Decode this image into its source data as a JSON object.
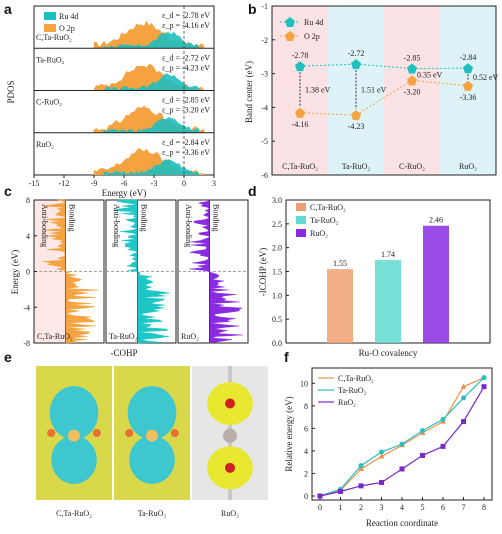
{
  "colors": {
    "ru": "#1fbfbf",
    "o": "#f5a240",
    "purple": "#8a2be2",
    "orange_bar": "#f0a070",
    "teal_bar": "#5fdcd0",
    "pink_band": "#fbe2e4",
    "blue_band": "#def3f8"
  },
  "panels": {
    "a": "a",
    "b": "b",
    "c": "c",
    "d": "d",
    "e": "e",
    "f": "f"
  },
  "chart_data": [
    {
      "id": "a",
      "type": "area",
      "ylabel": "PDOS",
      "xlabel": "Energy (eV)",
      "xlim": [
        -15,
        3
      ],
      "xticks": [
        "-15",
        "-12",
        "-9",
        "-6",
        "-3",
        "0",
        "3"
      ],
      "legend": [
        "Ru 4d",
        "O 2p"
      ],
      "rows": [
        {
          "name": "C,Ta-RuO₂",
          "ed": "ε_d = -2.78 eV",
          "ep": "ε_p = -4.16 eV"
        },
        {
          "name": "Ta-RuO₂",
          "ed": "ε_d = -2.72 eV",
          "ep": "ε_p = -4.23 eV"
        },
        {
          "name": "C-RuO₂",
          "ed": "ε_d = -2.85 eV",
          "ep": "ε_p = -3.20 eV"
        },
        {
          "name": "RuO₂",
          "ed": "ε_d = -2.84 eV",
          "ep": "ε_p = -3.36 eV"
        }
      ]
    },
    {
      "id": "b",
      "type": "scatter",
      "ylabel": "Band center (eV)",
      "ylim": [
        -6,
        -1
      ],
      "yticks": [
        "-1",
        "-2",
        "-3",
        "-4",
        "-5",
        "-6"
      ],
      "categories": [
        "C,Ta-RuO₂",
        "Ta-RuO₂",
        "C-RuO₂",
        "RuO₂"
      ],
      "series": [
        {
          "name": "Ru 4d",
          "values": [
            -2.78,
            -2.72,
            -2.85,
            -2.84
          ],
          "labels": [
            "-2.78",
            "-2.72",
            "-2.85",
            "-2.84"
          ]
        },
        {
          "name": "O 2p",
          "values": [
            -4.16,
            -4.23,
            -3.2,
            -3.36
          ],
          "labels": [
            "-4.16",
            "-4.23",
            "-3.20",
            "-3.36"
          ]
        }
      ],
      "gaps": [
        "1.38 eV",
        "1.51 eV",
        "0.35 eV",
        "0.52 eV"
      ]
    },
    {
      "id": "c",
      "type": "area",
      "ylabel": "Energy (eV)",
      "xlabel": "-COHP",
      "ylim": [
        -8,
        8
      ],
      "yticks": [
        "8",
        "4",
        "0",
        "-4",
        "-8"
      ],
      "side_labels": {
        "anti": "Anti-bonding",
        "bond": "Bonding"
      },
      "subpanels": [
        "C,Ta-RuO₂",
        "Ta-RuO₂",
        "RuO₂"
      ]
    },
    {
      "id": "d",
      "type": "bar",
      "ylabel": "-ICOHP (eV)",
      "xlabel": "Ru-O covalency",
      "ylim": [
        0,
        3.0
      ],
      "yticks": [
        "3.0",
        "2.5",
        "2.0",
        "1.5",
        "1.0",
        "0.5",
        "0.0"
      ],
      "categories": [
        "C,Ta-RuO₂",
        "Ta-RuO₂",
        "RuO₂"
      ],
      "values": [
        1.55,
        1.74,
        2.46
      ],
      "labels": [
        "1.55",
        "1.74",
        "2.46"
      ]
    },
    {
      "id": "f",
      "type": "line",
      "ylabel": "Relative energy (eV)",
      "xlabel": "Reaction coordinate",
      "xlim": [
        0,
        8
      ],
      "ylim": [
        0,
        11
      ],
      "xticks": [
        "0",
        "1",
        "2",
        "3",
        "4",
        "5",
        "6",
        "7",
        "8"
      ],
      "yticks": [
        "10",
        "8",
        "6",
        "4",
        "2",
        "0"
      ],
      "x": [
        0,
        1,
        2,
        3,
        4,
        5,
        6,
        7,
        8
      ],
      "series": [
        {
          "name": "C,Ta-RuO₂",
          "values": [
            0,
            0.5,
            2.4,
            3.5,
            4.5,
            5.6,
            6.6,
            9.7,
            10.5
          ]
        },
        {
          "name": "Ta-RuO₂",
          "values": [
            0,
            0.6,
            2.7,
            3.9,
            4.6,
            5.8,
            6.8,
            8.7,
            10.5
          ]
        },
        {
          "name": "RuO₂",
          "values": [
            0,
            0.4,
            0.9,
            1.2,
            2.4,
            3.6,
            4.4,
            6.6,
            9.7
          ]
        }
      ]
    }
  ],
  "panel_e": {
    "labels": [
      "C,Ta-RuO₂",
      "Ta-RuO₂",
      "RuO₂"
    ]
  }
}
